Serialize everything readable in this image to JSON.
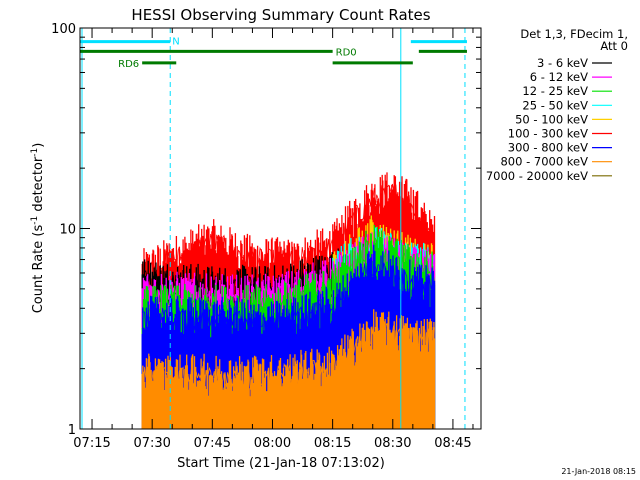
{
  "chart_data": {
    "type": "line",
    "title": "HESSI Observing Summary Count Rates",
    "xlabel": "Start Time (21-Jan-18 07:13:02)",
    "ylabel_prefix": "Count Rate (s",
    "ylabel_exp1": "-1",
    "ylabel_mid": " detector",
    "ylabel_exp2": "-1",
    "ylabel_suffix": ")",
    "y_scale": "log",
    "ylim": [
      1,
      100
    ],
    "xlim_minutes": [
      -3.0,
      97.0
    ],
    "x_tick_labels": [
      "07:15",
      "07:30",
      "07:45",
      "08:00",
      "08:15",
      "08:30",
      "08:45"
    ],
    "x_tick_minutes": [
      0,
      15,
      30,
      45,
      60,
      75,
      90
    ],
    "y_tick_labels": [
      "1",
      "10",
      "100"
    ],
    "y_tick_values": [
      1,
      10,
      100
    ],
    "legend_header": [
      "Det 1,3, FDecim 1,",
      "Att 0"
    ],
    "series": [
      {
        "name": "3 - 6 keV",
        "color": "#000000",
        "values": [
          [
            12.5,
            5.5
          ],
          [
            30,
            5.0
          ],
          [
            45,
            5.0
          ],
          [
            60,
            6.0
          ],
          [
            70,
            7.0
          ],
          [
            82,
            6.0
          ]
        ]
      },
      {
        "name": "6 - 12 keV",
        "color": "#ff00ff",
        "values": [
          [
            12.5,
            4.8
          ],
          [
            30,
            4.5
          ],
          [
            45,
            4.5
          ],
          [
            60,
            5.5
          ],
          [
            70,
            7.5
          ],
          [
            82,
            6.0
          ]
        ]
      },
      {
        "name": "12 - 25 keV",
        "color": "#00e000",
        "values": [
          [
            12.5,
            4.0
          ],
          [
            30,
            4.0
          ],
          [
            45,
            4.0
          ],
          [
            60,
            5.0
          ],
          [
            70,
            8.0
          ],
          [
            82,
            6.0
          ]
        ]
      },
      {
        "name": "25 - 50 keV",
        "color": "#00ffff",
        "values": [
          [
            60,
            6.0
          ],
          [
            70,
            8.0
          ],
          [
            82,
            6.5
          ]
        ]
      },
      {
        "name": "50 - 100 keV",
        "color": "#ffd000",
        "values": [
          [
            60,
            6.0
          ],
          [
            70,
            9.0
          ],
          [
            82,
            6.5
          ]
        ]
      },
      {
        "name": "100 - 300 keV",
        "color": "#ff0000",
        "values": [
          [
            12.5,
            6.0
          ],
          [
            20,
            7.0
          ],
          [
            30,
            8.5
          ],
          [
            40,
            7.0
          ],
          [
            50,
            6.8
          ],
          [
            60,
            8.0
          ],
          [
            65,
            11.0
          ],
          [
            70,
            14.0
          ],
          [
            75,
            15.0
          ],
          [
            80,
            13.0
          ],
          [
            85,
            9.0
          ]
        ]
      },
      {
        "name": "300 - 800 keV",
        "color": "#0000ff",
        "values": [
          [
            12.5,
            3.5
          ],
          [
            30,
            3.5
          ],
          [
            45,
            3.3
          ],
          [
            60,
            4.0
          ],
          [
            70,
            6.5
          ],
          [
            82,
            5.0
          ]
        ]
      },
      {
        "name": "800 - 7000 keV",
        "color": "#ff8c00",
        "values": [
          [
            12.5,
            1.8
          ],
          [
            30,
            1.8
          ],
          [
            45,
            1.8
          ],
          [
            60,
            2.0
          ],
          [
            70,
            3.0
          ],
          [
            82,
            2.8
          ]
        ]
      },
      {
        "name": "7000 - 20000 keV",
        "color": "#7a6a00",
        "values": []
      }
    ],
    "flags": [
      {
        "label": "N",
        "color": "#00e0ff",
        "segments": [
          [
            -3.0,
            19.5
          ],
          [
            79.5,
            93.5
          ]
        ],
        "y_level": 85.5
      },
      {
        "label": "RD0",
        "color": "#007a00",
        "segments": [
          [
            -3.0,
            60.0
          ],
          [
            81.5,
            93.5
          ]
        ],
        "y_level": 76.5
      },
      {
        "label": "RD6",
        "color": "#007a00",
        "segments": [
          [
            12.5,
            21.0
          ],
          [
            60.0,
            80.0
          ]
        ],
        "y_level": 67.0
      }
    ],
    "vertical_lines": [
      {
        "minute": -2.5,
        "color": "#00e0ff",
        "style": "solid"
      },
      {
        "minute": 19.5,
        "color": "#00e0ff",
        "style": "dashed"
      },
      {
        "minute": 77.0,
        "color": "#00e0ff",
        "style": "solid"
      },
      {
        "minute": 93.0,
        "color": "#00e0ff",
        "style": "dashed"
      }
    ]
  },
  "footer": {
    "timestamp": "21-Jan-2018 08:15"
  }
}
